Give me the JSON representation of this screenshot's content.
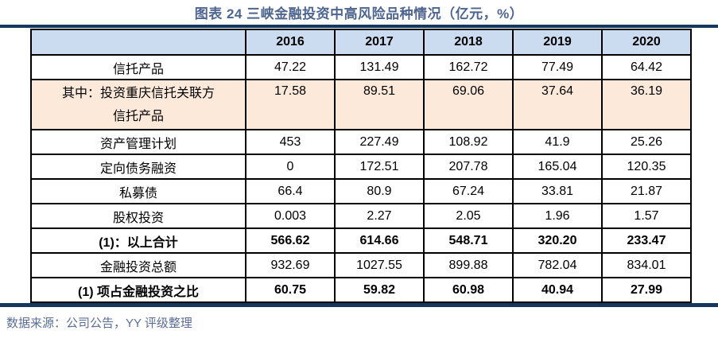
{
  "title": "图表 24 三峡金融投资中高风险品种情况（亿元，%）",
  "footer": {
    "source": "数据来源：公司公告，YY 评级整理"
  },
  "colors": {
    "title_text": "#4e6590",
    "rule": "#16365c",
    "header_bg": "#cbdcf1",
    "highlight_bg": "#fce9da",
    "footer_text": "#5b6e96",
    "border": "#000000"
  },
  "chart_data": {
    "type": "table",
    "columns": [
      "",
      "2016",
      "2017",
      "2018",
      "2019",
      "2020"
    ],
    "rows": [
      {
        "label": "信托产品",
        "values": [
          "47.22",
          "131.49",
          "162.72",
          "77.49",
          "64.42"
        ],
        "bold": false,
        "highlight": false
      },
      {
        "label": "其中：投资重庆信托关联方信托产品",
        "label_lines": [
          "其中：投资重庆信托关联方",
          "信托产品"
        ],
        "values": [
          "17.58",
          "89.51",
          "69.06",
          "37.64",
          "36.19"
        ],
        "bold": false,
        "highlight": true
      },
      {
        "label": "资产管理计划",
        "values": [
          "453",
          "227.49",
          "108.92",
          "41.9",
          "25.26"
        ],
        "bold": false,
        "highlight": false
      },
      {
        "label": "定向债务融资",
        "values": [
          "0",
          "172.51",
          "207.78",
          "165.04",
          "120.35"
        ],
        "bold": false,
        "highlight": false
      },
      {
        "label": "私募债",
        "values": [
          "66.4",
          "80.9",
          "67.24",
          "33.81",
          "21.87"
        ],
        "bold": false,
        "highlight": false
      },
      {
        "label": "股权投资",
        "values": [
          "0.003",
          "2.27",
          "2.05",
          "1.96",
          "1.57"
        ],
        "bold": false,
        "highlight": false
      },
      {
        "label": "(1)：以上合计",
        "values": [
          "566.62",
          "614.66",
          "548.71",
          "320.20",
          "233.47"
        ],
        "bold": true,
        "highlight": false
      },
      {
        "label": "金融投资总额",
        "values": [
          "932.69",
          "1027.55",
          "899.88",
          "782.04",
          "834.01"
        ],
        "bold": false,
        "highlight": false
      },
      {
        "label": "(1) 项占金融投资之比",
        "values": [
          "60.75",
          "59.82",
          "60.98",
          "40.94",
          "27.99"
        ],
        "bold": true,
        "highlight": false
      }
    ]
  }
}
